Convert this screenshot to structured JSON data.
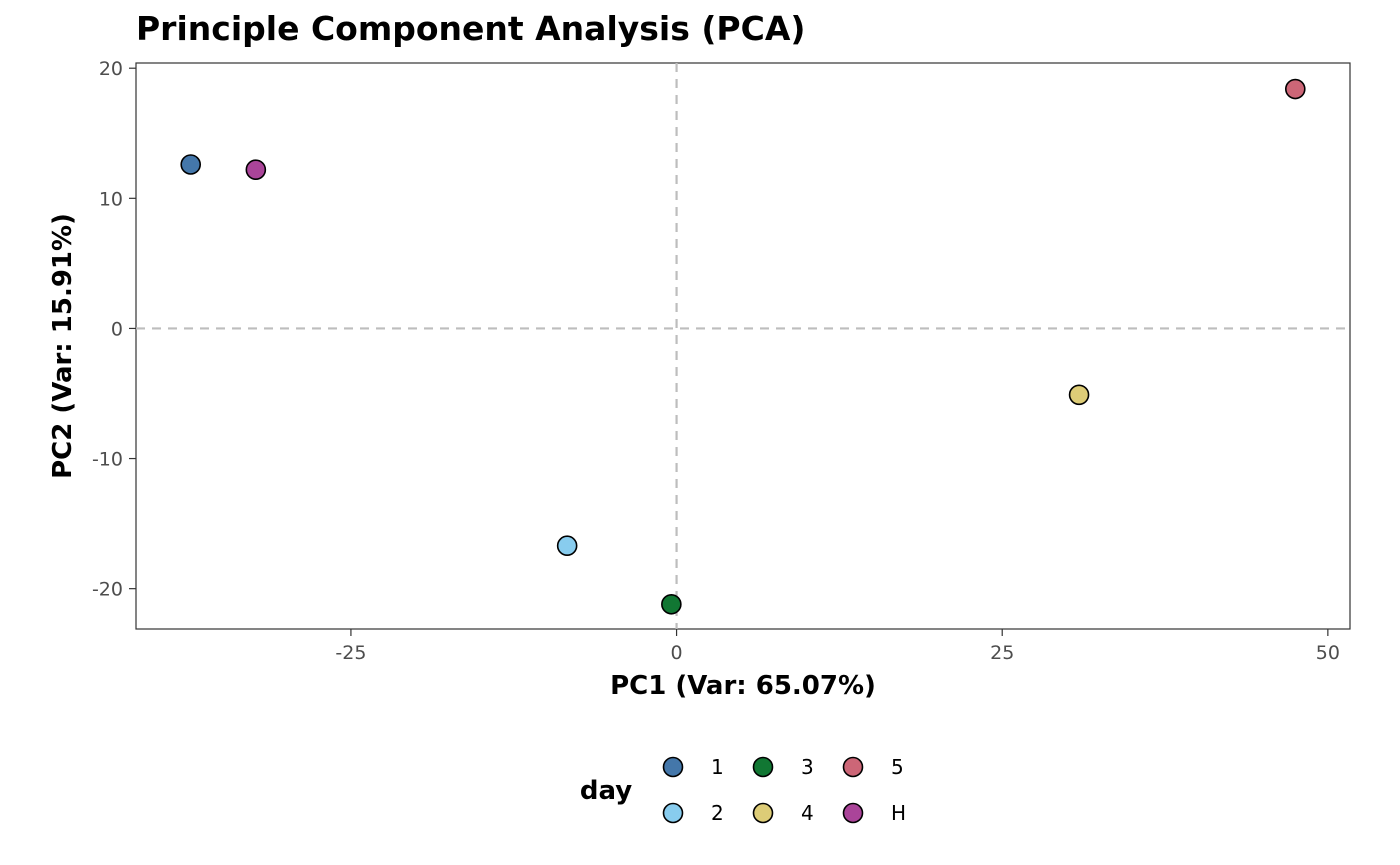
{
  "chart_data": {
    "type": "scatter",
    "title": "Principle Component Analysis (PCA)",
    "xlabel": "PC1 (Var: 65.07%)",
    "ylabel": "PC2 (Var: 15.91%)",
    "xlim": [
      -41.5,
      51.7
    ],
    "ylim": [
      -23.1,
      20.4
    ],
    "xticks": [
      -25,
      0,
      25,
      50
    ],
    "yticks": [
      -20,
      -10,
      0,
      10,
      20
    ],
    "reference_lines": {
      "x": 0,
      "y": 0
    },
    "grid": false,
    "legend_position": "bottom",
    "legend_title": "day",
    "series": [
      {
        "name": "1",
        "color": "#4477AA",
        "points": [
          {
            "x": -37.3,
            "y": 12.6
          }
        ]
      },
      {
        "name": "2",
        "color": "#88CCEE",
        "points": [
          {
            "x": -8.4,
            "y": -16.7
          }
        ]
      },
      {
        "name": "3",
        "color": "#117733",
        "points": [
          {
            "x": -0.4,
            "y": -21.2
          }
        ]
      },
      {
        "name": "4",
        "color": "#DDCC77",
        "points": [
          {
            "x": 30.9,
            "y": -5.1
          }
        ]
      },
      {
        "name": "5",
        "color": "#CC6677",
        "points": [
          {
            "x": 47.5,
            "y": 18.4
          }
        ]
      },
      {
        "name": "H",
        "color": "#AA4499",
        "points": [
          {
            "x": -32.3,
            "y": 12.2
          }
        ]
      }
    ]
  }
}
